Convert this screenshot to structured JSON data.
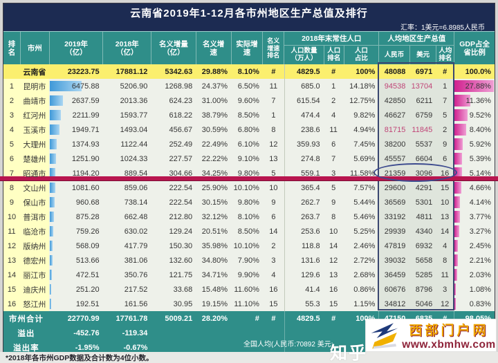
{
  "title": "云南省2019年1-12月各市州地区生产总值及排行",
  "exchange_rate": "汇率：1美元=6.8985人民币",
  "chart_data": {
    "type": "table",
    "header": {
      "rank": "排\n名",
      "city": "市州",
      "y2019": "2019年\n（亿）",
      "y2018": "2018年\n（亿）",
      "nominal_increase": "名义增量\n（亿）",
      "nominal_growth": "名义增\n速",
      "real_growth": "实际增\n速",
      "nominal_growth_rank": "名义\n增速\n排名",
      "population_group": "2018年末常住人口",
      "pop_count": "人口数量\n（万人）",
      "pop_rank": "人口\n排名",
      "pop_share": "人口\n占比",
      "percapita_group": "人均地区生产总值",
      "pc_cny": "人民币",
      "pc_usd": "美元",
      "pc_rank": "人均\n排名",
      "gdp_share": "GDP占全\n省比例"
    },
    "province_row": {
      "rank": "",
      "name": "云南省",
      "gdp2019": "23223.75",
      "gdp2018": "17881.12",
      "inc": "5342.63",
      "ng": "29.88%",
      "rg": "8.10%",
      "ngr": "#",
      "pop": "4829.5",
      "popr": "#",
      "pops": "100%",
      "cny": "48088",
      "usd": "6971",
      "pcr": "#",
      "share": "100.0%"
    },
    "rows": [
      {
        "rank": "1",
        "name": "昆明市",
        "gdp2019": "6475.88",
        "gdp2018": "5206.90",
        "inc": "1268.98",
        "ng": "24.37%",
        "rg": "6.50%",
        "ngr": "11",
        "pop": "685.0",
        "popr": "1",
        "pops": "14.18%",
        "cny": "94538",
        "usd": "13704",
        "pcr": "1",
        "share": "27.88%",
        "red": true
      },
      {
        "rank": "2",
        "name": "曲靖市",
        "gdp2019": "2637.59",
        "gdp2018": "2013.36",
        "inc": "624.23",
        "ng": "31.00%",
        "rg": "9.60%",
        "ngr": "7",
        "pop": "615.54",
        "popr": "2",
        "pops": "12.75%",
        "cny": "42850",
        "usd": "6211",
        "pcr": "7",
        "share": "11.36%"
      },
      {
        "rank": "3",
        "name": "红河州",
        "gdp2019": "2211.99",
        "gdp2018": "1593.77",
        "inc": "618.22",
        "ng": "38.79%",
        "rg": "8.50%",
        "ngr": "1",
        "pop": "474.4",
        "popr": "4",
        "pops": "9.82%",
        "cny": "46627",
        "usd": "6759",
        "pcr": "5",
        "share": "9.52%"
      },
      {
        "rank": "4",
        "name": "玉溪市",
        "gdp2019": "1949.71",
        "gdp2018": "1493.04",
        "inc": "456.67",
        "ng": "30.59%",
        "rg": "6.80%",
        "ngr": "8",
        "pop": "238.6",
        "popr": "11",
        "pops": "4.94%",
        "cny": "81715",
        "usd": "11845",
        "pcr": "2",
        "share": "8.40%",
        "red": true
      },
      {
        "rank": "5",
        "name": "大理州",
        "gdp2019": "1374.93",
        "gdp2018": "1122.44",
        "inc": "252.49",
        "ng": "22.49%",
        "rg": "6.10%",
        "ngr": "12",
        "pop": "359.93",
        "popr": "6",
        "pops": "7.45%",
        "cny": "38200",
        "usd": "5537",
        "pcr": "9",
        "share": "5.92%"
      },
      {
        "rank": "6",
        "name": "楚雄州",
        "gdp2019": "1251.90",
        "gdp2018": "1024.33",
        "inc": "227.57",
        "ng": "22.22%",
        "rg": "9.10%",
        "ngr": "13",
        "pop": "274.8",
        "popr": "7",
        "pops": "5.69%",
        "cny": "45557",
        "usd": "6604",
        "pcr": "6",
        "share": "5.39%"
      },
      {
        "rank": "7",
        "name": "昭通市",
        "gdp2019": "1194.20",
        "gdp2018": "889.54",
        "inc": "304.66",
        "ng": "34.25%",
        "rg": "9.80%",
        "ngr": "5",
        "pop": "559.1",
        "popr": "3",
        "pops": "11.58%",
        "cny": "21359",
        "usd": "3096",
        "pcr": "16",
        "share": "5.14%",
        "circled": true
      },
      {
        "rank": "8",
        "name": "文山州",
        "gdp2019": "1081.60",
        "gdp2018": "859.06",
        "inc": "222.54",
        "ng": "25.90%",
        "rg": "10.10%",
        "ngr": "10",
        "pop": "365.4",
        "popr": "5",
        "pops": "7.57%",
        "cny": "29600",
        "usd": "4291",
        "pcr": "15",
        "share": "4.66%"
      },
      {
        "rank": "9",
        "name": "保山市",
        "gdp2019": "960.68",
        "gdp2018": "738.14",
        "inc": "222.54",
        "ng": "30.15%",
        "rg": "9.80%",
        "ngr": "9",
        "pop": "262.7",
        "popr": "9",
        "pops": "5.44%",
        "cny": "36569",
        "usd": "5301",
        "pcr": "10",
        "share": "4.14%"
      },
      {
        "rank": "10",
        "name": "普洱市",
        "gdp2019": "875.28",
        "gdp2018": "662.48",
        "inc": "212.80",
        "ng": "32.12%",
        "rg": "8.10%",
        "ngr": "6",
        "pop": "263.7",
        "popr": "8",
        "pops": "5.46%",
        "cny": "33192",
        "usd": "4811",
        "pcr": "13",
        "share": "3.77%"
      },
      {
        "rank": "11",
        "name": "临沧市",
        "gdp2019": "759.26",
        "gdp2018": "630.02",
        "inc": "129.24",
        "ng": "20.51%",
        "rg": "8.50%",
        "ngr": "14",
        "pop": "253.6",
        "popr": "10",
        "pops": "5.25%",
        "cny": "29939",
        "usd": "4340",
        "pcr": "14",
        "share": "3.27%"
      },
      {
        "rank": "12",
        "name": "版纳州",
        "gdp2019": "568.09",
        "gdp2018": "417.79",
        "inc": "150.30",
        "ng": "35.98%",
        "rg": "10.10%",
        "ngr": "2",
        "pop": "118.8",
        "popr": "14",
        "pops": "2.46%",
        "cny": "47819",
        "usd": "6932",
        "pcr": "4",
        "share": "2.45%"
      },
      {
        "rank": "13",
        "name": "德宏州",
        "gdp2019": "513.66",
        "gdp2018": "381.06",
        "inc": "132.60",
        "ng": "34.80%",
        "rg": "7.90%",
        "ngr": "3",
        "pop": "131.6",
        "popr": "12",
        "pops": "2.72%",
        "cny": "39032",
        "usd": "5658",
        "pcr": "8",
        "share": "2.21%"
      },
      {
        "rank": "14",
        "name": "丽江市",
        "gdp2019": "472.51",
        "gdp2018": "350.76",
        "inc": "121.75",
        "ng": "34.71%",
        "rg": "9.90%",
        "ngr": "4",
        "pop": "129.6",
        "popr": "13",
        "pops": "2.68%",
        "cny": "36459",
        "usd": "5285",
        "pcr": "11",
        "share": "2.03%"
      },
      {
        "rank": "15",
        "name": "迪庆州",
        "gdp2019": "251.20",
        "gdp2018": "217.52",
        "inc": "33.68",
        "ng": "15.48%",
        "rg": "11.60%",
        "ngr": "16",
        "pop": "41.4",
        "popr": "16",
        "pops": "0.86%",
        "cny": "60676",
        "usd": "8796",
        "pcr": "3",
        "share": "1.08%"
      },
      {
        "rank": "16",
        "name": "怒江州",
        "gdp2019": "192.51",
        "gdp2018": "161.56",
        "inc": "30.95",
        "ng": "19.15%",
        "rg": "11.10%",
        "ngr": "15",
        "pop": "55.3",
        "popr": "15",
        "pops": "1.15%",
        "cny": "34812",
        "usd": "5046",
        "pcr": "12",
        "share": "0.83%"
      }
    ],
    "totals": [
      {
        "label": "市州合计",
        "gdp2019": "22770.99",
        "gdp2018": "17761.78",
        "inc": "5009.21",
        "ng": "28.20%",
        "rg": "#",
        "ngr": "#",
        "pop": "4829.5",
        "popr": "#",
        "pops": "100%",
        "cny": "47150",
        "usd": "6835",
        "pcr": "#",
        "share": "98.05%"
      },
      {
        "label": "溢出",
        "gdp2019": "-452.76",
        "gdp2018": "-119.34",
        "inc": "",
        "ng": "",
        "rg": "",
        "ngr": "",
        "pop": "",
        "popr": "",
        "pops": "",
        "cny": "",
        "usd": "",
        "pcr": "",
        "share": ""
      },
      {
        "label": "溢出率",
        "gdp2019": "-1.95%",
        "gdp2018": "-0.67%",
        "inc": "",
        "ng": "",
        "rg": "",
        "ngr": "",
        "pop": "",
        "popr": "",
        "pops": "",
        "cny": "",
        "usd": "",
        "pcr": "",
        "share": ""
      }
    ],
    "max_gdp2019": 6475.88,
    "max_share": 27.88
  },
  "footer": {
    "footnote": "*2018年各市州GDP数据及合计数为4位小数。",
    "national_note": "全国人均(人民币:70892 美元:"
  },
  "watermarks": {
    "zhihu": "知乎",
    "site_name": "西部门户网",
    "site_url": "www.xbmhw.com"
  },
  "colors": {
    "title_navy": "#1c2b52",
    "header_teal": "#2f8e89",
    "row_yellow": "#fbef6e",
    "name_yellow": "#ffffc3",
    "percapita_gray": "#dfe5dc",
    "red_line": "#b8164f",
    "bar_blue": "#3f99d8",
    "bar_magenta": "#d0218f",
    "highlight_value_red": "#c04577",
    "circle_blue": "#3c4a8e",
    "site_gold": "#efa400",
    "site_url_maroon": "#8d2238"
  }
}
